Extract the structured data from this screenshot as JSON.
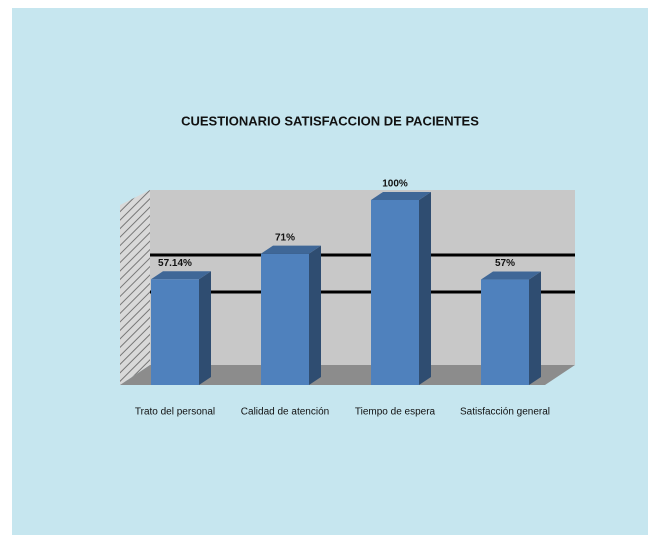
{
  "chart_data": {
    "type": "bar3d",
    "title": "CUESTIONARIO SATISFACCION DE PACIENTES",
    "categories": [
      "Trato del personal",
      "Calidad de atención",
      "Tiempo de espera",
      "Satisfacción general"
    ],
    "values": [
      57.14,
      71,
      100,
      57
    ],
    "value_labels": [
      "57.14%",
      "71%",
      "100%",
      "57%"
    ],
    "color": "#4f81bd"
  }
}
